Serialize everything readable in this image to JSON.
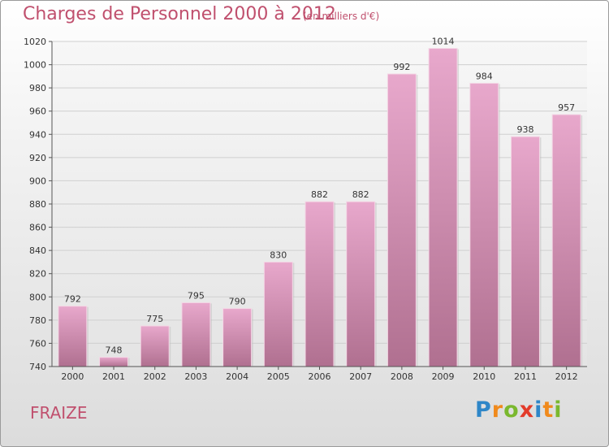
{
  "header": {
    "title": "Charges de Personnel 2000 à 2012",
    "subtitle": "(en milliers d'€)"
  },
  "footer": {
    "commune": "FRAIZE",
    "logo_letters": [
      "P",
      "r",
      "o",
      "x",
      "i",
      "t",
      "i"
    ],
    "logo_colors": [
      "#2e86c8",
      "#f08a1c",
      "#7ab82e",
      "#e33b2a",
      "#2e86c8",
      "#f08a1c",
      "#7ab82e"
    ]
  },
  "chart_data": {
    "type": "bar",
    "title": "Charges de Personnel 2000 à 2012",
    "subtitle": "(en milliers d'€)",
    "categories": [
      "2000",
      "2001",
      "2002",
      "2003",
      "2004",
      "2005",
      "2006",
      "2007",
      "2008",
      "2009",
      "2010",
      "2011",
      "2012"
    ],
    "values": [
      792,
      748,
      775,
      795,
      790,
      830,
      882,
      882,
      992,
      1014,
      984,
      938,
      957
    ],
    "ylim": [
      740,
      1020
    ],
    "yticks": [
      740,
      760,
      780,
      800,
      820,
      840,
      860,
      880,
      900,
      920,
      940,
      960,
      980,
      1000,
      1020
    ],
    "grid": true,
    "bar_color_top": "#e8a8cc",
    "bar_color_bottom": "#b07090"
  }
}
